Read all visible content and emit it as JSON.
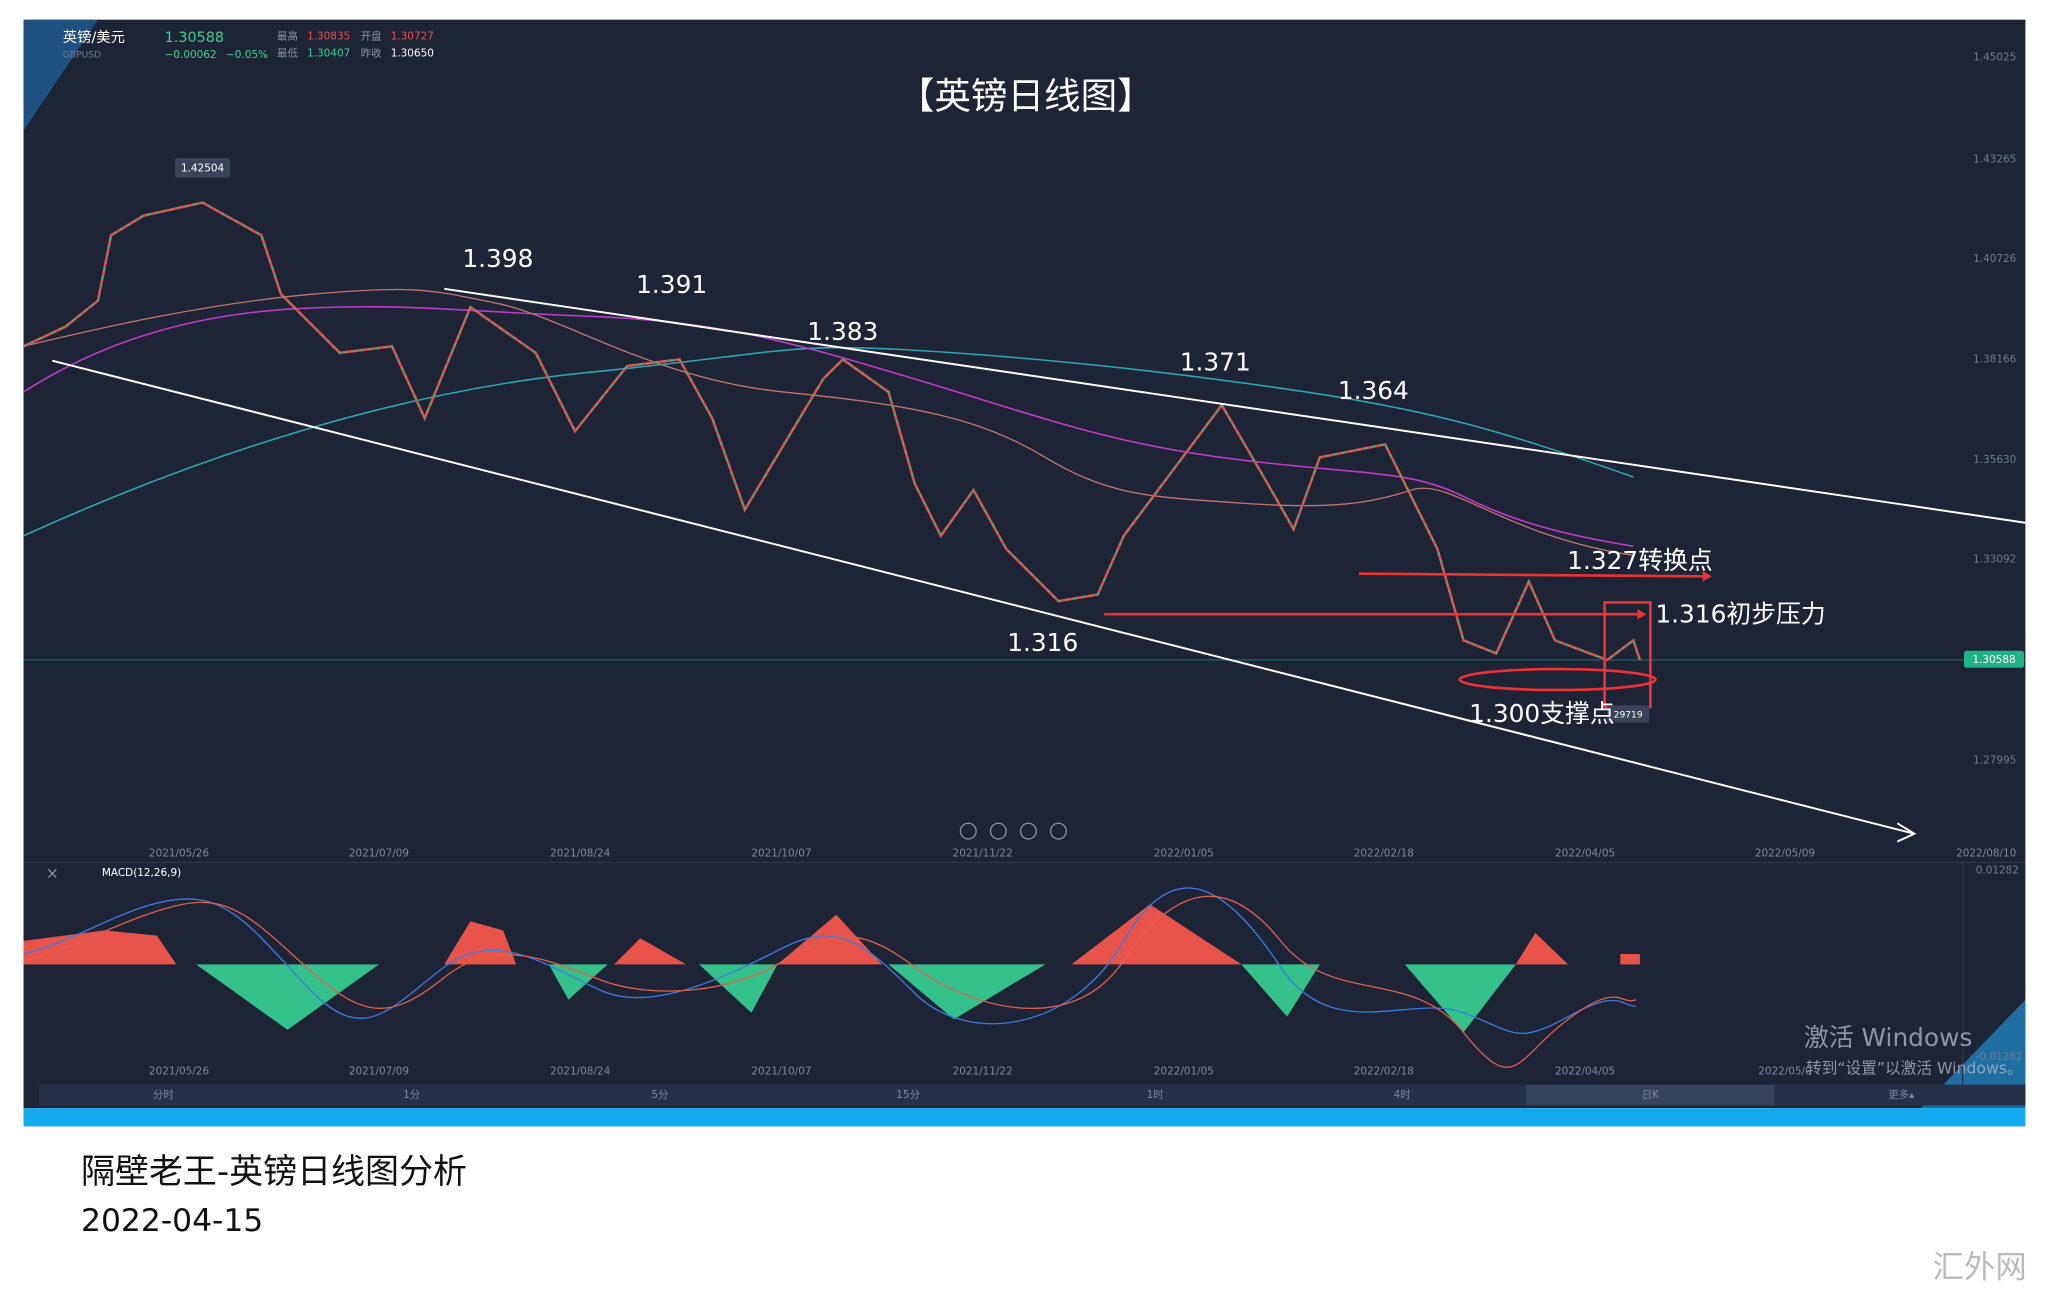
{
  "header": {
    "symbol": "英镑/美元",
    "price": "1.30588",
    "code": "GBPUSD",
    "change": "−0.00062",
    "change_pct": "−0.05%",
    "high_label": "最高",
    "high": "1.30835",
    "open_label": "开盘",
    "open": "1.30727",
    "low_label": "最低",
    "low": "1.30407",
    "prev_label": "昨收",
    "prev": "1.30650"
  },
  "title": "【英镑日线图】",
  "price_axis": [
    "1.45025",
    "1.43265",
    "1.40726",
    "1.38166",
    "1.35630",
    "1.33092",
    "1.27995"
  ],
  "current_price": "1.30588",
  "dates": [
    "2021/05/26",
    "2021/07/09",
    "2021/08/24",
    "2021/10/07",
    "2021/11/22",
    "2022/01/05",
    "2022/02/18",
    "2022/04/05",
    "2022/05/09",
    "2022/08/10"
  ],
  "peak_label": "1.42504",
  "annotations": [
    "1.398",
    "1.391",
    "1.383",
    "1.371",
    "1.364",
    "1.316",
    "1.327转换点",
    "1.316初步压力",
    "1.300支撑点"
  ],
  "volume_tag": "29719",
  "macd": {
    "label": "MACD(12,26,9)",
    "axis": [
      "0.01282",
      "-0.01282"
    ],
    "dates": [
      "2021/05/26",
      "2021/07/09",
      "2021/08/24",
      "2021/10/07",
      "2021/11/22",
      "2022/01/05",
      "2022/02/18",
      "2022/04/05",
      "2022/05/0"
    ]
  },
  "tabs": [
    "分时",
    "1分",
    "5分",
    "15分",
    "1时",
    "4时",
    "日K",
    "更多▴"
  ],
  "watermark": [
    "激活 Windows",
    "转到“设置”以激活 Windows。"
  ],
  "footer": {
    "caption": "隔壁老王-英镑日线图分析",
    "date": "2022-04-15"
  },
  "site": "汇外网"
}
